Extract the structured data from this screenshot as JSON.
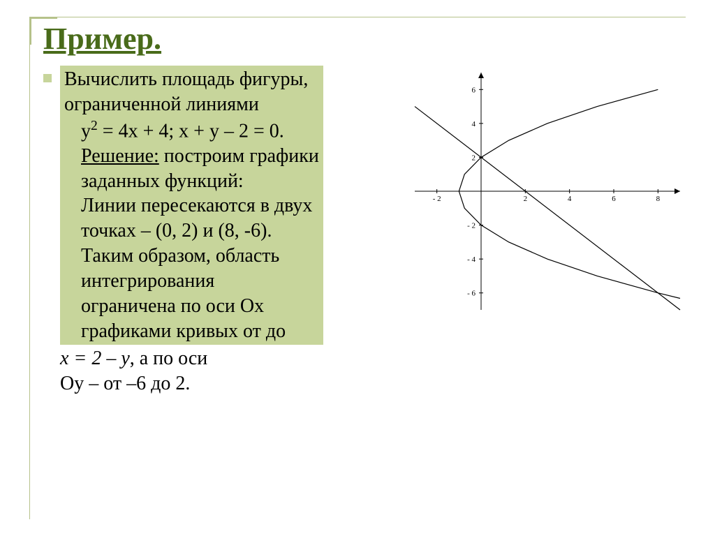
{
  "title": "Пример.",
  "body": {
    "p1a": "Вычислить площадь фигуры,",
    "p1b": "ограниченной линиями",
    "eq1": "y",
    "eq1_sup": "2",
    "eq1_rest": " = 4x + 4; x + y – 2 = 0.",
    "p2a_u": "Решение:",
    "p2a_rest": " построим графики",
    "p2b": "заданных функций:",
    "p3a": "Линии пересекаются в двух",
    "p3b": "точках – (0, 2) и (8, -6).",
    "p3c": "Таким образом, область",
    "p3d": "интегрирования",
    "p3e": "ограничена по оси Ох",
    "p3f": "графиками кривых от  до",
    "p4_i": "x = 2 – y",
    "p4_rest": ", а по оси",
    "p5": "Оу – от –6 до 2."
  },
  "chart": {
    "type": "line",
    "background_color": "#ffffff",
    "axis_color": "#000000",
    "tick_color": "#000000",
    "curve_color": "#000000",
    "line_color": "#000000",
    "line_width": 1.2,
    "tick_fontsize": 11,
    "xlim": [
      -3,
      9
    ],
    "ylim": [
      -7,
      7
    ],
    "xticks": [
      -2,
      2,
      4,
      6,
      8
    ],
    "yticks": [
      -6,
      -4,
      -2,
      2,
      4,
      6
    ],
    "parabola_points": [
      [
        8,
        6
      ],
      [
        5.25,
        5
      ],
      [
        3,
        4
      ],
      [
        1.25,
        3
      ],
      [
        0,
        2
      ],
      [
        -0.75,
        1
      ],
      [
        -1,
        0
      ],
      [
        -0.75,
        -1
      ],
      [
        0,
        -2
      ],
      [
        1.25,
        -3
      ],
      [
        3,
        -4
      ],
      [
        5.25,
        -5
      ],
      [
        8,
        -6
      ],
      [
        9,
        -6.32
      ]
    ],
    "linear_line": {
      "x1": -3,
      "y1": 5,
      "x2": 9,
      "y2": -7
    }
  },
  "colors": {
    "frame": "#b6c28a",
    "title": "#496b1a",
    "highlight_bg": "#c7d59b",
    "text": "#000000"
  }
}
